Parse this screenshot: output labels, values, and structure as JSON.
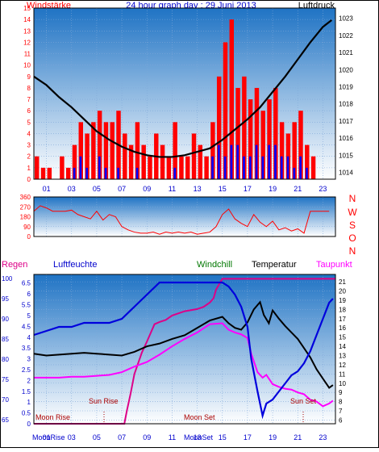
{
  "header": {
    "left_label": "Windstärke",
    "title": "24 hour graph day : 29 Juni 2013",
    "right_label": "Luftdruck"
  },
  "colors": {
    "bg_top": "#1f73c4",
    "bg_bottom": "#ffffff",
    "wind": "#ff0000",
    "gust": "#0000ff",
    "pressure": "#000000",
    "humidity": "#0000dd",
    "windchill": "#007700",
    "temperature": "#000000",
    "dewpoint": "#ff00ff",
    "rain": "#dd0088",
    "axis_red": "#ff0000",
    "axis_blue": "#0000cc",
    "axis_black": "#000000",
    "sun_moon_label": "#aa0000"
  },
  "panel_wind": {
    "left_ticks": [
      "0",
      "1",
      "2",
      "3",
      "4",
      "5",
      "6",
      "7",
      "8",
      "9",
      "10",
      "11",
      "12",
      "13",
      "14",
      "15"
    ],
    "right_ticks": [
      "1014",
      "1015",
      "1016",
      "1017",
      "1018",
      "1019",
      "1020",
      "1021",
      "1022",
      "1023"
    ]
  },
  "x_ticks": [
    "01",
    "03",
    "05",
    "07",
    "09",
    "11",
    "13",
    "15",
    "17",
    "19",
    "21",
    "23"
  ],
  "panel_dir": {
    "left_ticks": [
      "0",
      "90",
      "180",
      "270",
      "360"
    ],
    "compass": [
      "N",
      "W",
      "S",
      "O",
      "N"
    ]
  },
  "panel_temp": {
    "legend": {
      "rain": "Regen",
      "humidity": "Luftfeuchte",
      "windchill": "Windchill",
      "temperature": "Temperatur",
      "dewpoint": "Taupunkt"
    },
    "humidity_ticks": [
      "65",
      "70",
      "75",
      "80",
      "85",
      "90",
      "95",
      "100"
    ],
    "rain_ticks": [
      "0",
      "0.5",
      "1",
      "1.5",
      "2",
      "2.5",
      "3",
      "3.5",
      "4",
      "4.5",
      "5",
      "5.5",
      "6",
      "6.5"
    ],
    "temp_ticks": [
      "6",
      "7",
      "8",
      "9",
      "10",
      "11",
      "12",
      "13",
      "14",
      "15",
      "16",
      "17",
      "18",
      "19",
      "20",
      "21"
    ],
    "events": {
      "moon_rise": "Moon Rise",
      "sun_rise": "Sun Rise",
      "moon_set": "Moon Set",
      "sun_set": "Sun Set"
    },
    "bottom_labels": {
      "moonrise": "MoonRise",
      "moonset": "MoonSet"
    }
  },
  "chart_data": [
    {
      "type": "bar",
      "name": "wind",
      "x_hours": [
        0,
        0.5,
        1,
        1.5,
        2,
        2.5,
        3,
        3.5,
        4,
        4.5,
        5,
        5.5,
        6,
        6.5,
        7,
        7.5,
        8,
        8.5,
        9,
        9.5,
        10,
        10.5,
        11,
        11.5,
        12,
        12.5,
        13,
        13.5,
        14,
        14.5,
        15,
        15.5,
        16,
        16.5,
        17,
        17.5,
        18,
        18.5,
        19,
        19.5,
        20,
        20.5,
        21,
        21.5,
        22,
        22.5,
        23,
        23.5
      ],
      "wind_values": [
        2,
        1,
        1,
        0,
        2,
        1,
        3,
        5,
        4,
        5,
        6,
        5,
        5,
        6,
        4,
        3,
        5,
        3,
        2,
        4,
        3,
        2,
        5,
        2,
        2,
        4,
        3,
        2,
        5,
        9,
        12,
        14,
        8,
        9,
        7,
        8,
        6,
        7,
        8,
        5,
        4,
        5,
        6,
        3,
        2,
        0,
        0,
        0
      ],
      "gust_values": [
        0,
        0,
        0,
        0,
        0,
        0,
        1,
        2,
        1,
        0,
        2,
        1,
        0,
        1,
        0,
        0,
        1,
        0,
        0,
        0,
        0,
        0,
        1,
        0,
        0,
        0,
        0,
        0,
        2,
        3,
        2,
        3,
        3,
        2,
        2,
        3,
        2,
        3,
        3,
        2,
        2,
        1,
        2,
        1,
        0,
        0,
        0,
        0
      ],
      "ylim": [
        0,
        15
      ]
    },
    {
      "type": "line",
      "name": "pressure",
      "x": [
        0,
        1,
        2,
        3,
        4,
        5,
        6,
        7,
        8,
        9,
        10,
        11,
        12,
        13,
        14,
        15,
        16,
        17,
        18,
        19,
        20,
        21,
        22,
        23,
        23.7
      ],
      "y": [
        1019.6,
        1019.1,
        1018.4,
        1017.8,
        1017.1,
        1016.4,
        1015.9,
        1015.5,
        1015.2,
        1015.0,
        1014.9,
        1014.9,
        1015.0,
        1015.2,
        1015.4,
        1015.9,
        1016.5,
        1017.1,
        1017.8,
        1018.7,
        1019.6,
        1020.6,
        1021.6,
        1022.5,
        1022.9
      ],
      "ylim": [
        1013.6,
        1023.6
      ]
    },
    {
      "type": "line",
      "name": "wind_direction",
      "x_hours": [
        0,
        0.5,
        1,
        1.5,
        2,
        2.5,
        3,
        3.5,
        4,
        4.5,
        5,
        5.5,
        6,
        6.5,
        7,
        7.5,
        8,
        8.5,
        9,
        9.5,
        10,
        10.5,
        11,
        11.5,
        12,
        12.5,
        13,
        13.5,
        14,
        14.5,
        15,
        15.5,
        16,
        16.5,
        17,
        17.5,
        18,
        18.5,
        19,
        19.5,
        20,
        20.5,
        21,
        21.5,
        22,
        22.5,
        23,
        23.5
      ],
      "deg": [
        230,
        280,
        260,
        230,
        230,
        230,
        240,
        200,
        180,
        160,
        230,
        150,
        200,
        180,
        90,
        60,
        40,
        30,
        30,
        40,
        20,
        40,
        30,
        40,
        30,
        40,
        20,
        30,
        40,
        90,
        200,
        250,
        160,
        120,
        90,
        200,
        130,
        90,
        140,
        60,
        80,
        50,
        70,
        30,
        230,
        230,
        230,
        230
      ],
      "ylim": [
        0,
        360
      ]
    },
    {
      "type": "line",
      "name": "humidity",
      "x": [
        0,
        1,
        2,
        3,
        4,
        5,
        6,
        7,
        8,
        9,
        10,
        11,
        12,
        13,
        14,
        15,
        15.5,
        16,
        16.5,
        17,
        17.3,
        17.8,
        18.2,
        18.5,
        19,
        19.5,
        20,
        20.5,
        21,
        21.5,
        22,
        22.5,
        23,
        23.5,
        23.8
      ],
      "y": [
        86,
        87,
        88,
        88,
        89,
        89,
        89,
        90,
        93,
        96,
        99,
        99,
        99,
        99,
        99,
        99,
        98,
        96,
        93,
        88,
        80,
        72,
        66,
        69,
        70,
        72,
        74,
        76,
        77,
        79,
        82,
        86,
        90,
        94,
        95
      ],
      "ylim": [
        64,
        101
      ]
    },
    {
      "type": "line",
      "name": "temperature",
      "x": [
        0,
        1,
        2,
        3,
        4,
        5,
        6,
        7,
        8,
        9,
        10,
        11,
        12,
        13,
        14,
        15,
        15.5,
        16,
        16.5,
        17,
        17.5,
        18,
        18.3,
        18.7,
        19,
        19.5,
        20,
        20.5,
        21,
        21.5,
        22,
        22.5,
        23,
        23.5,
        23.8
      ],
      "y": [
        13.2,
        13.0,
        13.1,
        13.2,
        13.3,
        13.2,
        13.1,
        13.0,
        13.4,
        14.0,
        14.3,
        14.8,
        15.2,
        16.0,
        16.8,
        17.2,
        16.5,
        16.0,
        15.8,
        16.6,
        18.0,
        18.8,
        17.4,
        16.5,
        17.9,
        17.0,
        16.2,
        15.5,
        14.8,
        13.8,
        12.8,
        11.5,
        10.5,
        9.5,
        9.8
      ],
      "ylim": [
        5.6,
        21.8
      ]
    },
    {
      "type": "line",
      "name": "dewpoint",
      "x": [
        0,
        1,
        2,
        3,
        4,
        5,
        6,
        7,
        8,
        9,
        10,
        11,
        12,
        13,
        14,
        15,
        15.5,
        16,
        16.5,
        17,
        17.3,
        17.8,
        18.2,
        18.5,
        19,
        19.5,
        20,
        20.5,
        21,
        21.5,
        22,
        22.5,
        23,
        23.5,
        23.8
      ],
      "y": [
        10.6,
        10.6,
        10.6,
        10.7,
        10.7,
        10.8,
        10.9,
        11.2,
        11.8,
        12.3,
        13.1,
        14.0,
        14.8,
        15.5,
        16.4,
        16.5,
        15.8,
        15.5,
        15.3,
        14.9,
        13.2,
        11.2,
        10.6,
        10.9,
        9.9,
        9.6,
        9.4,
        9.3,
        9.0,
        8.8,
        8.2,
        8.0,
        7.5,
        7.8,
        8.1
      ],
      "ylim": [
        5.6,
        21.8
      ]
    },
    {
      "type": "line",
      "name": "rain",
      "x": [
        0,
        7.2,
        7.4,
        7.7,
        8.0,
        8.3,
        8.6,
        9.0,
        9.3,
        9.6,
        10.0,
        10.5,
        11,
        12,
        13,
        13.5,
        14,
        14.3,
        14.5,
        14.8,
        15.0,
        24
      ],
      "y": [
        0,
        0,
        0.6,
        1.4,
        2.3,
        2.8,
        3.3,
        3.8,
        4.2,
        4.6,
        4.7,
        4.8,
        5.0,
        5.2,
        5.3,
        5.4,
        5.6,
        5.8,
        6.2,
        6.5,
        6.7,
        6.7
      ],
      "ylim": [
        0,
        6.9
      ]
    }
  ]
}
